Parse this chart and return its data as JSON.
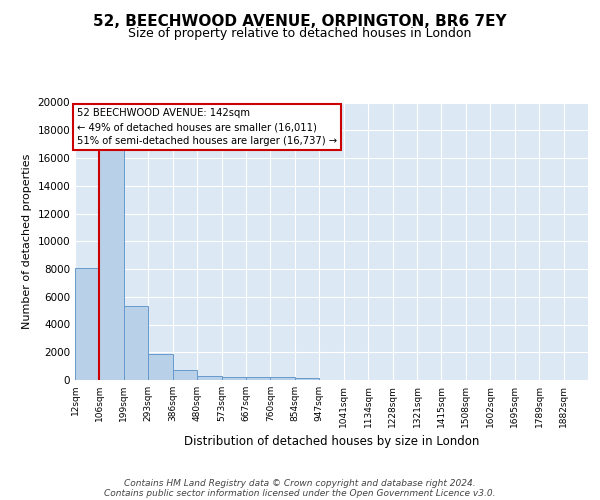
{
  "title": "52, BEECHWOOD AVENUE, ORPINGTON, BR6 7EY",
  "subtitle": "Size of property relative to detached houses in London",
  "xlabel": "Distribution of detached houses by size in London",
  "ylabel": "Number of detached properties",
  "bin_labels": [
    "12sqm",
    "106sqm",
    "199sqm",
    "293sqm",
    "386sqm",
    "480sqm",
    "573sqm",
    "667sqm",
    "760sqm",
    "854sqm",
    "947sqm",
    "1041sqm",
    "1134sqm",
    "1228sqm",
    "1321sqm",
    "1415sqm",
    "1508sqm",
    "1602sqm",
    "1695sqm",
    "1789sqm",
    "1882sqm"
  ],
  "bar_heights": [
    8100,
    16600,
    5300,
    1850,
    700,
    300,
    230,
    200,
    200,
    160,
    0,
    0,
    0,
    0,
    0,
    0,
    0,
    0,
    0,
    0
  ],
  "bar_color": "#b8d0e8",
  "bar_edge_color": "#6699cc",
  "background_color": "#dce8f4",
  "annotation_text": "52 BEECHWOOD AVENUE: 142sqm\n← 49% of detached houses are smaller (16,011)\n51% of semi-detached houses are larger (16,737) →",
  "annotation_box_color": "#ffffff",
  "annotation_border_color": "#cc0000",
  "red_line_x": 1.0,
  "ylim": [
    0,
    20000
  ],
  "yticks": [
    0,
    2000,
    4000,
    6000,
    8000,
    10000,
    12000,
    14000,
    16000,
    18000,
    20000
  ],
  "footer_line1": "Contains HM Land Registry data © Crown copyright and database right 2024.",
  "footer_line2": "Contains public sector information licensed under the Open Government Licence v3.0.",
  "grid_color": "#ffffff",
  "title_fontsize": 11,
  "subtitle_fontsize": 9,
  "ylabel_fontsize": 8,
  "xlabel_fontsize": 8.5
}
